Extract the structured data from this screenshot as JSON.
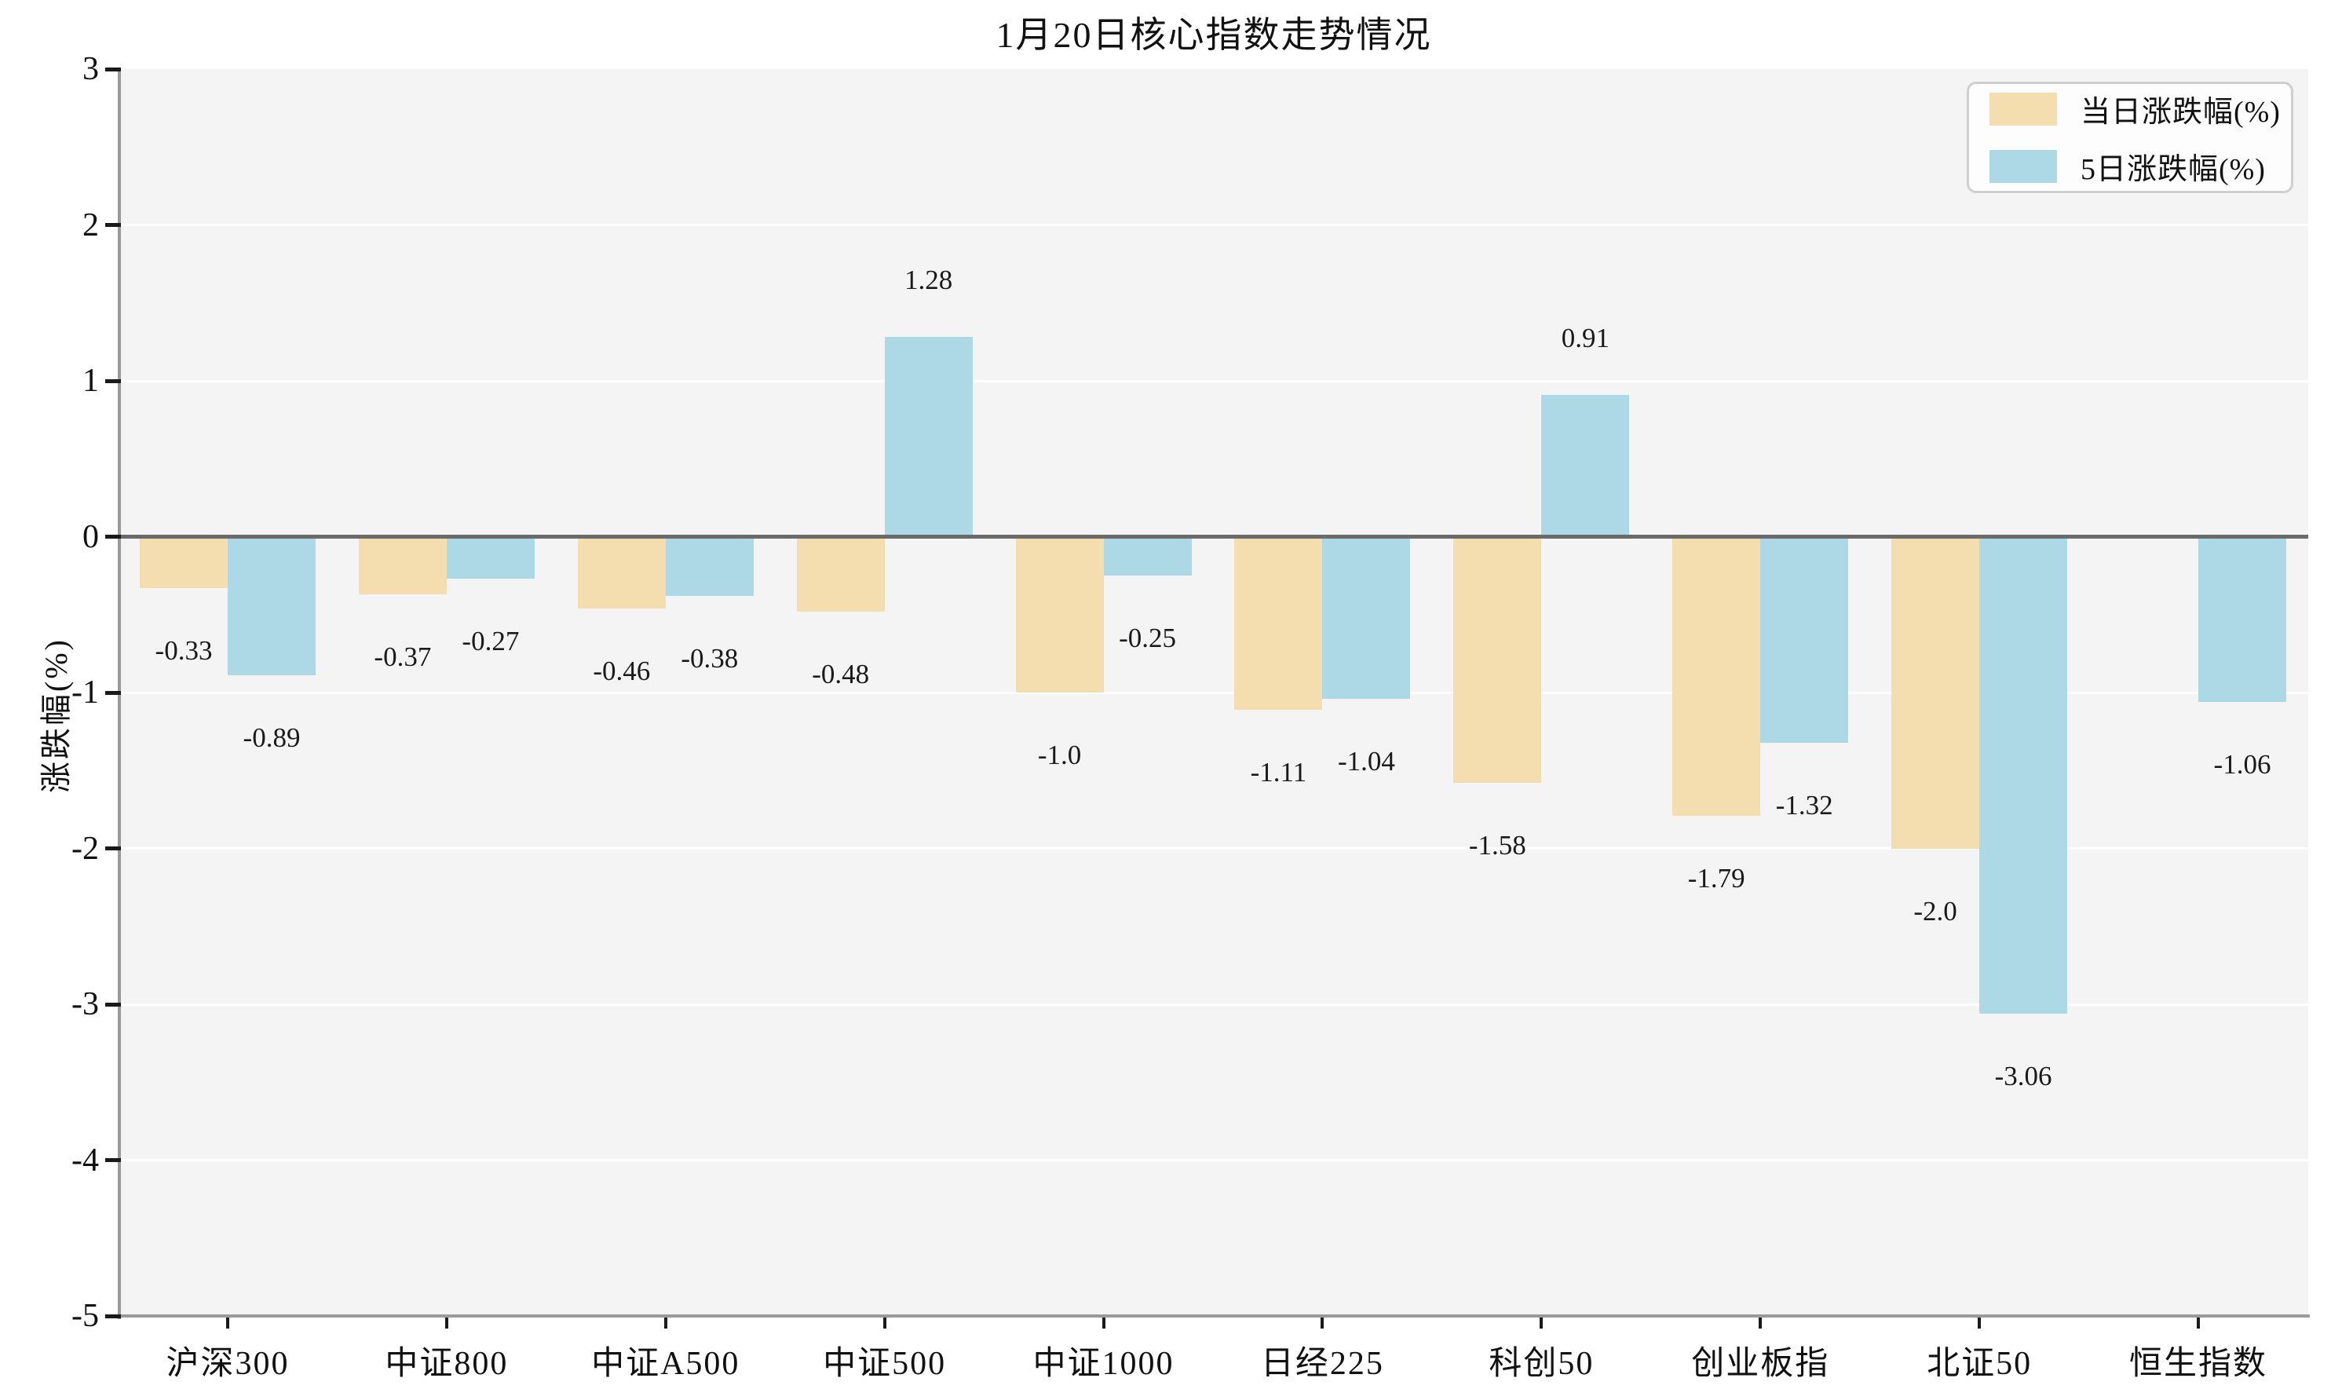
{
  "chart_data": {
    "type": "bar",
    "title": "1月20日核心指数走势情况",
    "ylabel": "涨跌幅(%)",
    "xlabel": "",
    "categories": [
      "沪深300",
      "中证800",
      "中证A500",
      "中证500",
      "中证1000",
      "日经225",
      "科创50",
      "创业板指",
      "北证50",
      "恒生指数"
    ],
    "series": [
      {
        "name": "当日涨跌幅(%)",
        "color": "#f4deb0",
        "values": [
          -0.33,
          -0.37,
          -0.46,
          -0.48,
          -1.0,
          -1.11,
          -1.58,
          -1.79,
          -2.0,
          null
        ],
        "labels": [
          "-0.33",
          "-0.37",
          "-0.46",
          "-0.48",
          "-1.0",
          "-1.11",
          "-1.58",
          "-1.79",
          "-2.0",
          null
        ]
      },
      {
        "name": "5日涨跌幅(%)",
        "color": "#add8e6",
        "values": [
          -0.89,
          -0.27,
          -0.38,
          1.28,
          -0.25,
          -1.04,
          0.91,
          -1.32,
          -3.06,
          -1.06
        ],
        "labels": [
          "-0.89",
          "-0.27",
          "-0.38",
          "1.28",
          "-0.25",
          "-1.04",
          "0.91",
          "-1.32",
          "-3.06",
          "-1.06"
        ]
      }
    ],
    "y_ticks": [
      3,
      2,
      1,
      0,
      -1,
      -2,
      -3,
      -4,
      -5
    ],
    "ylim": [
      -5,
      3
    ],
    "grid": true,
    "legend_position": "upper right",
    "plot_background": "#f4f4f4",
    "zero_line_color": "#6a6a6a",
    "spine_color": "#9a9a9a"
  }
}
